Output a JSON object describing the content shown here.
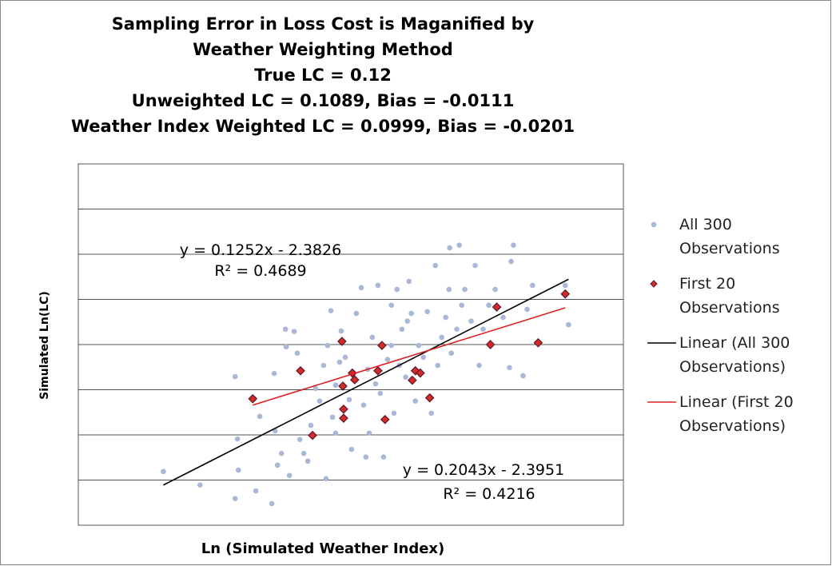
{
  "chart_data": {
    "type": "scatter",
    "title": "Sampling Error in Loss Cost is Maganified by Weather Weighting Method",
    "subtitle": [
      "True LC = 0.12",
      "Unweighted LC = 0.1089, Bias = -0.0111",
      "Weather Index Weighted LC = 0.0999, Bias = -0.0201"
    ],
    "x_label": "Ln (Simulated Weather Index)",
    "y_label": "Simulated Ln(LC)",
    "xlim": [
      -1.77,
      1.23
    ],
    "ylim": [
      -2.75,
      -1.95
    ],
    "yticks": [
      -2.75,
      -2.65,
      -2.55,
      -2.45,
      -2.35,
      -2.25,
      -2.15,
      -2.05,
      -1.95
    ],
    "grid": true,
    "legend": "right",
    "series": [
      {
        "name": "All 300 Observations",
        "color": "#a8b8d6",
        "marker": "circle",
        "x": [
          -1.302,
          -1.1,
          -0.907,
          -0.894,
          -0.889,
          -0.907,
          -0.802,
          -0.793,
          -0.771,
          -0.705,
          -0.692,
          -0.687,
          -0.674,
          -0.652,
          -0.63,
          -0.626,
          -0.608,
          -0.582,
          -0.565,
          -0.551,
          -0.529,
          -0.507,
          -0.49,
          -0.464,
          -0.442,
          -0.42,
          -0.407,
          -0.398,
          -0.38,
          -0.371,
          -0.354,
          -0.332,
          -0.323,
          -0.301,
          -0.279,
          -0.266,
          -0.24,
          -0.213,
          -0.2,
          -0.187,
          -0.169,
          -0.152,
          -0.134,
          -0.121,
          -0.108,
          -0.09,
          -0.068,
          -0.047,
          -0.033,
          -0.016,
          -0.003,
          0.011,
          0.032,
          0.05,
          0.063,
          0.085,
          0.103,
          0.129,
          0.151,
          0.173,
          0.195,
          0.208,
          0.23,
          0.252,
          0.27,
          0.283,
          0.313,
          0.327,
          0.34,
          0.357,
          0.392,
          0.414,
          0.436,
          0.458,
          0.489,
          0.524,
          0.568,
          0.603,
          0.625,
          0.612,
          0.678,
          0.7,
          0.73,
          0.91,
          0.928,
          0.274,
          0.041,
          -0.047,
          -0.178,
          -0.354
        ],
        "values": [
          -2.631,
          -2.661,
          -2.691,
          -2.559,
          -2.628,
          -2.421,
          -2.47,
          -2.674,
          -2.509,
          -2.702,
          -2.414,
          -2.541,
          -2.617,
          -2.591,
          -2.316,
          -2.355,
          -2.64,
          -2.321,
          -2.369,
          -2.56,
          -2.591,
          -2.608,
          -2.529,
          -2.447,
          -2.475,
          -2.396,
          -2.647,
          -2.352,
          -2.275,
          -2.511,
          -2.546,
          -2.389,
          -2.32,
          -2.378,
          -2.472,
          -2.582,
          -2.281,
          -2.224,
          -2.484,
          -2.599,
          -2.546,
          -2.334,
          -2.437,
          -2.219,
          -2.458,
          -2.599,
          -2.383,
          -2.263,
          -2.502,
          -2.228,
          -2.396,
          -2.316,
          -2.422,
          -2.21,
          -2.281,
          -2.475,
          -2.352,
          -2.378,
          -2.277,
          -2.502,
          -2.175,
          -2.396,
          -2.334,
          -2.29,
          -2.228,
          -2.369,
          -2.316,
          -2.13,
          -2.263,
          -2.228,
          -2.298,
          -2.175,
          -2.396,
          -2.316,
          -2.263,
          -2.228,
          -2.29,
          -2.401,
          -2.13,
          -2.166,
          -2.419,
          -2.272,
          -2.219,
          -2.219,
          -2.306,
          -2.136,
          -2.298,
          -2.352,
          -2.405,
          -2.44
        ]
      },
      {
        "name": "First 20 Observations",
        "color": "#d42a2a",
        "marker": "diamond",
        "x": [
          -0.81,
          -0.547,
          -0.481,
          -0.319,
          -0.314,
          -0.31,
          -0.31,
          -0.262,
          -0.249,
          -0.121,
          -0.099,
          -0.082,
          0.068,
          0.085,
          0.112,
          0.164,
          0.498,
          0.533,
          0.761,
          0.91
        ],
        "values": [
          -2.47,
          -2.408,
          -2.551,
          -2.343,
          -2.442,
          -2.493,
          -2.513,
          -2.413,
          -2.428,
          -2.408,
          -2.352,
          -2.516,
          -2.429,
          -2.408,
          -2.413,
          -2.468,
          -2.35,
          -2.267,
          -2.346,
          -2.238
        ]
      }
    ],
    "trendlines": [
      {
        "name": "Linear (All 300 Observations)",
        "color": "#000000",
        "slope": 0.2043,
        "intercept": -2.3951,
        "equation": "y = 0.2043x - 2.3951",
        "r2": "R² = 0.4216"
      },
      {
        "name": "Linear (First 20 Observations)",
        "color": "#e02020",
        "slope": 0.1252,
        "intercept": -2.3826,
        "equation": "y = 0.1252x - 2.3826",
        "r2": "R² = 0.4689"
      }
    ]
  }
}
